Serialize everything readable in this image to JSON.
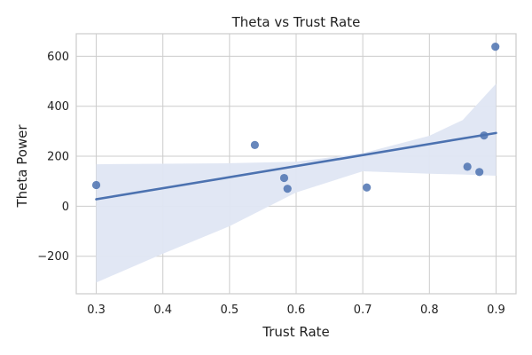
{
  "chart_data": {
    "type": "scatter",
    "title": "Theta vs Trust Rate",
    "xlabel": "Trust Rate",
    "ylabel": "Theta Power",
    "xlim": [
      0.27,
      0.93
    ],
    "ylim": [
      -350,
      690
    ],
    "xticks": [
      0.3,
      0.4,
      0.5,
      0.6,
      0.7,
      0.8,
      0.9
    ],
    "xtick_labels": [
      "0.3",
      "0.4",
      "0.5",
      "0.6",
      "0.7",
      "0.8",
      "0.9"
    ],
    "yticks": [
      -200,
      0,
      200,
      400,
      600
    ],
    "ytick_labels": [
      "−200",
      "0",
      "200",
      "400",
      "600"
    ],
    "grid": true,
    "points": [
      {
        "x": 0.3,
        "y": 85
      },
      {
        "x": 0.538,
        "y": 245
      },
      {
        "x": 0.582,
        "y": 113
      },
      {
        "x": 0.587,
        "y": 70
      },
      {
        "x": 0.706,
        "y": 75
      },
      {
        "x": 0.857,
        "y": 158
      },
      {
        "x": 0.875,
        "y": 137
      },
      {
        "x": 0.882,
        "y": 283
      },
      {
        "x": 0.899,
        "y": 638
      }
    ],
    "regression": {
      "x": [
        0.3,
        0.9
      ],
      "y": [
        28,
        293
      ]
    },
    "confidence_band": {
      "x": [
        0.3,
        0.4,
        0.5,
        0.6,
        0.7,
        0.8,
        0.85,
        0.9
      ],
      "upper": [
        168,
        170,
        172,
        178,
        212,
        282,
        345,
        490
      ],
      "lower": [
        -305,
        -190,
        -80,
        55,
        140,
        130,
        127,
        122
      ]
    },
    "colors": {
      "points": "#4c72b0",
      "line": "#4c72b0",
      "band": "#dfe6f3",
      "grid": "#cccccc",
      "spine": "#cccccc"
    }
  }
}
